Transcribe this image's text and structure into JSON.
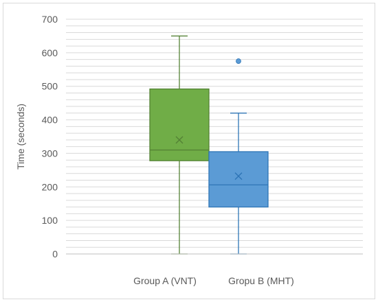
{
  "chart_data": {
    "type": "box",
    "title": "",
    "xlabel": "",
    "ylabel": "Time (seconds)",
    "ylim": [
      0,
      700
    ],
    "yticks": [
      0,
      100,
      200,
      300,
      400,
      500,
      600,
      700
    ],
    "minor_grid_step": 20,
    "grid": true,
    "legend": "none",
    "categories": [
      "Group A (VNT)",
      "Gropu B (MHT)"
    ],
    "series": [
      {
        "category": "Group A (VNT)",
        "min": 0,
        "q1": 278,
        "median": 310,
        "q3": 492,
        "max": 650,
        "mean": 340,
        "outliers": [],
        "fill_color": "#70AD47",
        "line_color": "#548235"
      },
      {
        "category": "Gropu B (MHT)",
        "min": 0,
        "q1": 140,
        "median": 206,
        "q3": 305,
        "max": 420,
        "mean": 232,
        "outliers": [
          575
        ],
        "fill_color": "#5B9BD5",
        "line_color": "#2E75B6"
      }
    ],
    "colors": {
      "grid": "#d9d9d9",
      "axis": "#bfbfbf",
      "text": "#595959"
    }
  }
}
